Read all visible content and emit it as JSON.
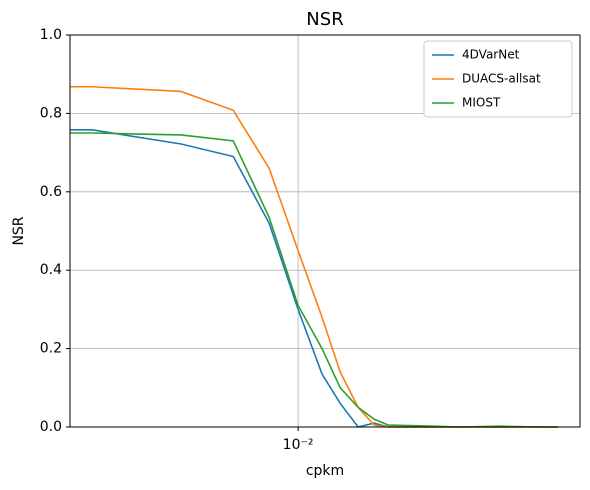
{
  "chart_data": {
    "type": "line",
    "title": "NSR",
    "x_label": "cpkm",
    "y_label": "NSR",
    "x": [
      0.00251,
      0.00287,
      0.00492,
      0.00675,
      0.00839,
      0.01,
      0.01156,
      0.01291,
      0.01439,
      0.01585,
      0.01726,
      0.0209,
      0.0267,
      0.034,
      0.0434,
      0.0483
    ],
    "series": [
      {
        "name": "4DVarNet",
        "color": "#1f77b4",
        "values": [
          0.758,
          0.758,
          0.722,
          0.69,
          0.52,
          0.3,
          0.135,
          0.06,
          0.0,
          0.01,
          0.0,
          0.0,
          0.0,
          0.0,
          0.0,
          0.0
        ]
      },
      {
        "name": "DUACS-allsat",
        "color": "#ff7f0e",
        "values": [
          0.868,
          0.868,
          0.856,
          0.808,
          0.66,
          0.45,
          0.28,
          0.14,
          0.05,
          0.005,
          0.0,
          0.0,
          0.0,
          0.0,
          0.0,
          0.0
        ]
      },
      {
        "name": "MIOST",
        "color": "#2ca02c",
        "values": [
          0.75,
          0.75,
          0.745,
          0.73,
          0.535,
          0.31,
          0.2,
          0.1,
          0.05,
          0.02,
          0.005,
          0.003,
          0.0,
          0.002,
          0.0,
          0.0
        ]
      }
    ],
    "xlim": [
      0.00251,
      0.0552
    ],
    "xlog": true,
    "xticks": [
      {
        "value": 0.01,
        "label": "10⁻²"
      }
    ],
    "ylim": [
      0,
      1
    ],
    "yticks": [
      {
        "value": 0,
        "label": "0.0"
      },
      {
        "value": 0.2,
        "label": "0.2"
      },
      {
        "value": 0.4,
        "label": "0.4"
      },
      {
        "value": 0.6,
        "label": "0.6"
      },
      {
        "value": 0.8,
        "label": "0.8"
      },
      {
        "value": 1,
        "label": "1.0"
      }
    ],
    "grid": true,
    "legend": "upper right"
  }
}
